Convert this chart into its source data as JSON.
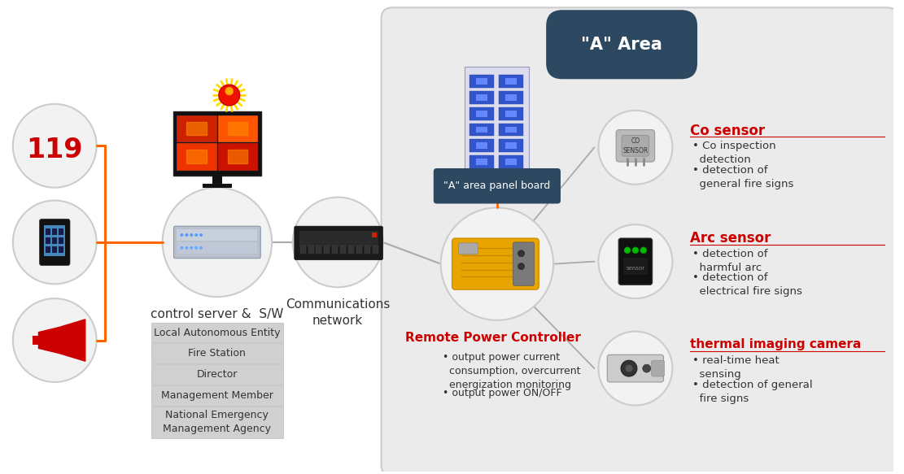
{
  "white_bg": "#ffffff",
  "orange_color": "#ff6600",
  "dark_teal": "#2d4861",
  "red_color": "#cc0000",
  "gray_text": "#333333",
  "circle_fill": "#f2f2f2",
  "circle_edge": "#cccccc",
  "area_bg": "#ebebeb",
  "area_edge": "#cccccc",
  "table_bg": "#d0d0d0",
  "table_edge": "#bbbbbb",
  "line_gray": "#aaaaaa",
  "area_label": "\"A\" Area",
  "panel_board_label": "\"A\" area panel board",
  "control_server_label": "control server &  S/W",
  "comm_network_label": "Communications\nnetwork",
  "table_items": [
    "Local Autonomous Entity",
    "Fire Station",
    "Director",
    "Management Member",
    "National Emergency\nManagement Agency"
  ],
  "rpc_title": "Remote Power Controller",
  "rpc_bullet1": "• output power current\n  consumption, overcurrent\n  energization monitoring",
  "rpc_bullet2": "• output power ON/OFF",
  "co_sensor_title": "Co sensor",
  "co_bullet1": "• Co inspection\n  detection",
  "co_bullet2": "• detection of\n  general fire signs",
  "arc_sensor_title": "Arc sensor",
  "arc_bullet1": "• detection of\n  harmful arc",
  "arc_bullet2": "• detection of\n  electrical fire signs",
  "thermal_title": "thermal imaging camera",
  "thermal_bullet1": "• real-time heat\n  sensing",
  "thermal_bullet2": "• detection of general\n  fire signs"
}
